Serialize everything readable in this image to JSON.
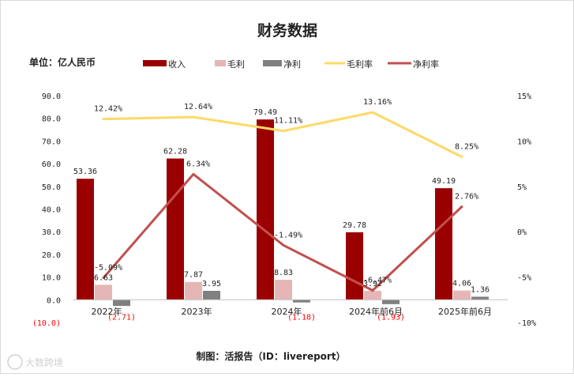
{
  "chart_data": {
    "type": "bar",
    "title": "财务数据",
    "unit_label": "单位：亿人民币",
    "footer": "制图：活报告（ID：livereport）",
    "watermark": "大数跨境",
    "categories": [
      "2022年",
      "2023年",
      "2024年",
      "2024年前6月",
      "2025年前6月"
    ],
    "series": [
      {
        "name": "收入",
        "kind": "bar",
        "axis": "left",
        "color": "#9b0000",
        "values": [
          53.36,
          62.28,
          79.49,
          29.78,
          49.19
        ],
        "labels": [
          "53.36",
          "62.28",
          "79.49",
          "29.78",
          "49.19"
        ]
      },
      {
        "name": "毛利",
        "kind": "bar",
        "axis": "left",
        "color": "#e6b6b6",
        "values": [
          6.63,
          7.87,
          8.83,
          3.92,
          4.06
        ],
        "labels": [
          "6.63",
          "7.87",
          "8.83",
          "3.92",
          "4.06"
        ]
      },
      {
        "name": "净利",
        "kind": "bar",
        "axis": "left",
        "color": "#808080",
        "values": [
          -2.71,
          3.95,
          -1.18,
          -1.93,
          1.36
        ],
        "labels": [
          "(2.71)",
          "3.95",
          "(1.18)",
          "(1.93)",
          "1.36"
        ]
      },
      {
        "name": "毛利率",
        "kind": "line",
        "axis": "right",
        "color": "#ffd966",
        "values": [
          12.42,
          12.64,
          11.11,
          13.16,
          8.25
        ],
        "labels": [
          "12.42%",
          "12.64%",
          "11.11%",
          "13.16%",
          "8.25%"
        ]
      },
      {
        "name": "净利率",
        "kind": "line",
        "axis": "right",
        "color": "#c0504d",
        "values": [
          -5.09,
          6.34,
          -1.49,
          -6.47,
          2.76
        ],
        "labels": [
          "-5.09%",
          "6.34%",
          "-1.49%",
          "-6.47%",
          "2.76%"
        ]
      }
    ],
    "y_left": {
      "ylim": [
        -10,
        90
      ],
      "ticks": [
        "(10.0)",
        "0.0",
        "10.0",
        "20.0",
        "30.0",
        "40.0",
        "50.0",
        "60.0",
        "70.0",
        "80.0",
        "90.0"
      ],
      "tick_values": [
        -10,
        0,
        10,
        20,
        30,
        40,
        50,
        60,
        70,
        80,
        90
      ]
    },
    "y_right": {
      "ylim": [
        -10,
        15
      ],
      "ticks": [
        "-10%",
        "-5%",
        "0%",
        "5%",
        "10%",
        "15%"
      ],
      "tick_values": [
        -10,
        -5,
        0,
        5,
        10,
        15
      ]
    },
    "negative_label_color": "#ff0000",
    "grid": false,
    "legend_position": "top"
  }
}
